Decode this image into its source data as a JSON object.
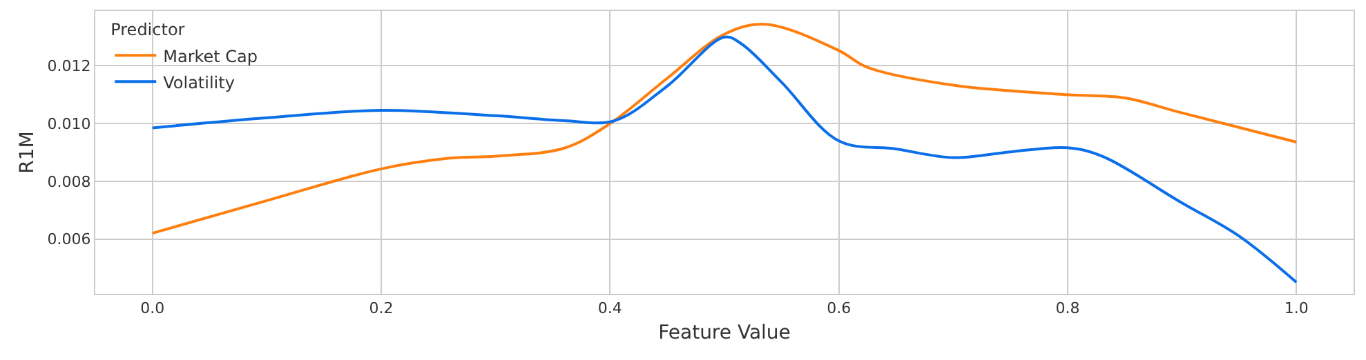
{
  "chart_data": {
    "type": "line",
    "xlabel": "Feature Value",
    "ylabel": "R1M",
    "legend_title": "Predictor",
    "legend": "top left",
    "grid": true,
    "line_style": "solid",
    "marker": "none",
    "xlim": [
      -0.05,
      1.05
    ],
    "xticks": [
      {
        "value": 0,
        "label": "0.0"
      },
      0.2,
      0.4,
      0.6,
      0.8,
      {
        "value": 1,
        "label": "1.0"
      }
    ],
    "ylim": [
      0.0041,
      0.0139
    ],
    "yticks": [
      0.006,
      0.008,
      {
        "value": 0.01,
        "label": "0.010"
      },
      0.012
    ],
    "series": [
      {
        "name": "Market Cap",
        "color": "#ff7f0e",
        "x": [
          0,
          0.1,
          0.2,
          0.26,
          0.3,
          0.36,
          0.4,
          0.45,
          0.5,
          0.536,
          0.6,
          0.625,
          0.7,
          0.8,
          0.85,
          0.9,
          1.0
        ],
        "values": [
          0.0062,
          0.00733,
          0.00843,
          0.0088,
          0.00887,
          0.00915,
          0.01,
          0.01157,
          0.0131,
          0.01344,
          0.01253,
          0.01195,
          0.01133,
          0.011,
          0.01089,
          0.01037,
          0.00936
        ]
      },
      {
        "name": "Volatility",
        "color": "#0a6fe8",
        "x": [
          0,
          0.1,
          0.2,
          0.3,
          0.36,
          0.404,
          0.45,
          0.5,
          0.515,
          0.55,
          0.6,
          0.65,
          0.7,
          0.75,
          0.8,
          0.83,
          0.9,
          0.95,
          1.0
        ],
        "values": [
          0.00985,
          0.0102,
          0.01046,
          0.01027,
          0.0101,
          0.0101,
          0.0113,
          0.013,
          0.01276,
          0.01143,
          0.0094,
          0.00912,
          0.00882,
          0.00902,
          0.00916,
          0.00887,
          0.00725,
          0.0061,
          0.0045
        ]
      }
    ]
  }
}
